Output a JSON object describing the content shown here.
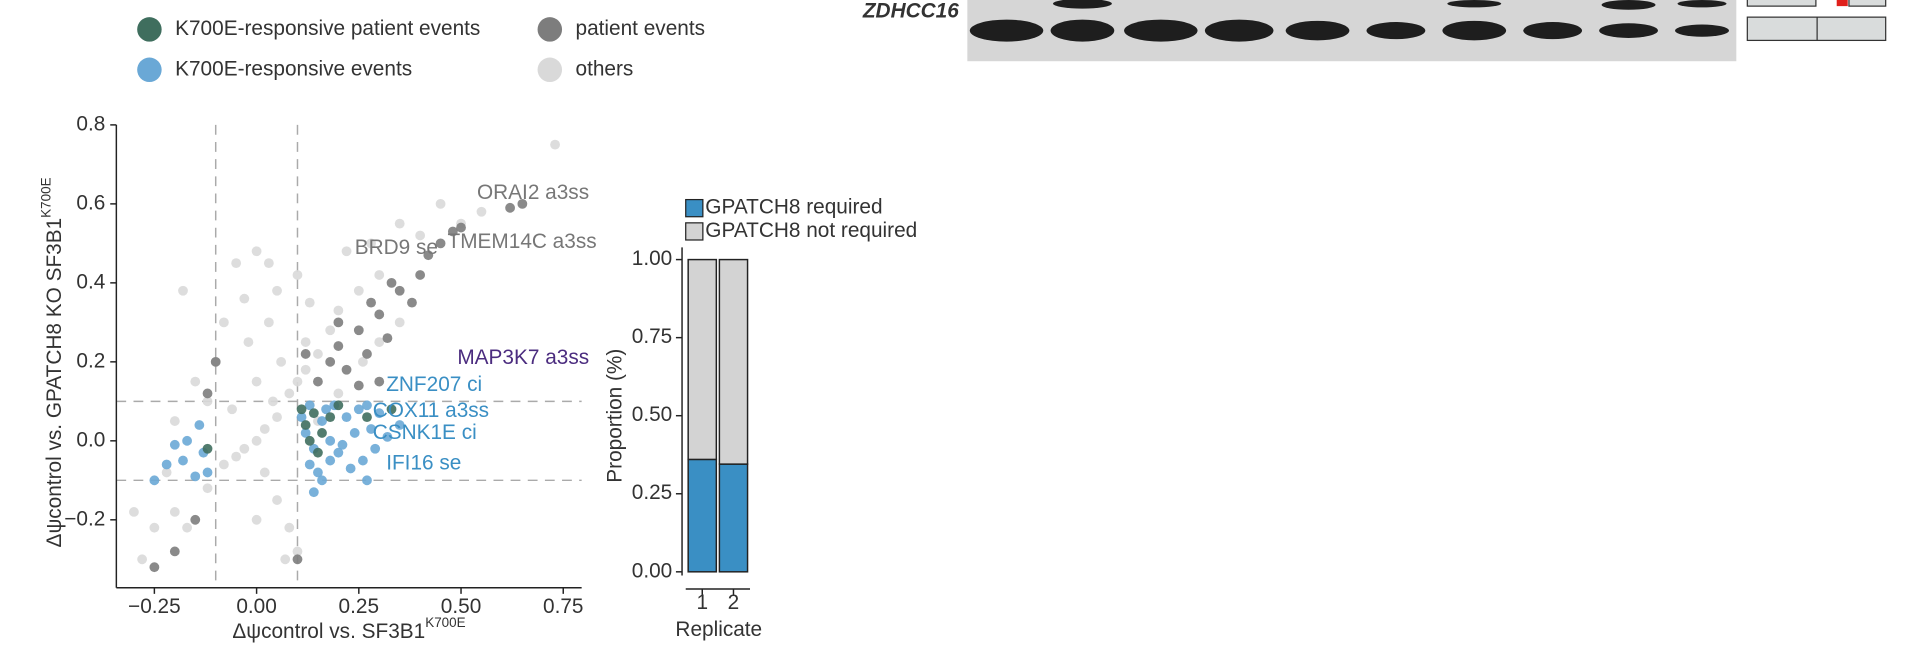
{
  "gel": {
    "label": "ZDHCC16"
  },
  "chart_data": [
    {
      "type": "scatter",
      "xlabel": "Δψcontrol vs. SF3B1",
      "xlabel_sup": "K700E",
      "ylabel": "Δψcontrol vs. GPATCH8 KO SF3B1",
      "ylabel_sup": "K700E",
      "xlim": [
        -0.343,
        0.795
      ],
      "ylim": [
        -0.372,
        0.8
      ],
      "xticks": [
        {
          "value": -0.25,
          "label": "−0.25"
        },
        {
          "value": 0,
          "label": "0.00"
        },
        {
          "value": 0.25,
          "label": "0.25"
        },
        {
          "value": 0.5,
          "label": "0.50"
        },
        {
          "value": 0.75,
          "label": "0.75"
        }
      ],
      "yticks": [
        {
          "value": -0.2,
          "label": "−0.2"
        },
        {
          "value": 0,
          "label": "0.0"
        },
        0.2,
        0.4,
        0.6,
        0.8
      ],
      "ref_lines": {
        "x": [
          -0.1,
          0.1
        ],
        "y": [
          -0.1,
          0.1
        ]
      },
      "series": [
        {
          "name": "K700E-responsive patient events",
          "color": "#3f6e5e",
          "x": [
            0.11,
            0.12,
            0.13,
            0.14,
            0.16,
            0.18,
            0.2,
            0.15,
            0.27,
            0.33,
            -0.12
          ],
          "y": [
            0.08,
            0.04,
            0.0,
            0.07,
            0.02,
            0.06,
            0.09,
            -0.03,
            0.06,
            0.08,
            -0.02
          ]
        },
        {
          "name": "patient events",
          "color": "#7d7d7d",
          "x": [
            0.15,
            0.18,
            0.2,
            0.22,
            0.25,
            0.27,
            0.3,
            0.32,
            0.35,
            0.38,
            0.4,
            0.42,
            0.45,
            0.48,
            0.5,
            0.62,
            0.65,
            0.28,
            0.2,
            0.12,
            -0.1,
            -0.12,
            -0.15,
            -0.2,
            -0.25,
            0.1,
            0.3,
            0.33,
            0.25
          ],
          "y": [
            0.15,
            0.2,
            0.24,
            0.18,
            0.28,
            0.22,
            0.32,
            0.26,
            0.38,
            0.35,
            0.42,
            0.47,
            0.5,
            0.53,
            0.54,
            0.59,
            0.6,
            0.35,
            0.3,
            0.22,
            0.2,
            0.12,
            -0.2,
            -0.28,
            -0.32,
            -0.3,
            0.15,
            0.4,
            0.14
          ]
        },
        {
          "name": "K700E-responsive events",
          "color": "#6aa8d6",
          "x": [
            0.12,
            0.14,
            0.16,
            0.18,
            0.2,
            0.22,
            0.24,
            0.26,
            0.28,
            0.3,
            0.32,
            0.13,
            0.15,
            0.17,
            0.19,
            0.21,
            0.23,
            0.25,
            0.11,
            0.13,
            0.16,
            0.14,
            0.18,
            0.35,
            0.29,
            0.27,
            -0.12,
            -0.13,
            -0.15,
            -0.18,
            -0.2,
            -0.22,
            -0.25,
            -0.14,
            -0.17,
            0.27
          ],
          "y": [
            0.02,
            -0.02,
            0.05,
            0.0,
            -0.03,
            0.06,
            0.02,
            -0.05,
            0.03,
            0.07,
            0.01,
            -0.06,
            -0.08,
            0.08,
            0.09,
            -0.01,
            -0.07,
            0.08,
            0.06,
            0.09,
            -0.1,
            -0.13,
            -0.05,
            0.04,
            -0.02,
            0.09,
            -0.08,
            -0.03,
            -0.09,
            -0.05,
            -0.01,
            -0.06,
            -0.1,
            0.04,
            0.0,
            -0.1
          ]
        },
        {
          "name": "others",
          "color": "#d9d9d9",
          "x": [
            0,
            0.02,
            -0.03,
            0.05,
            -0.05,
            0.04,
            0.08,
            -0.08,
            0.1,
            0.12,
            0.06,
            0.15,
            0,
            -0.02,
            0.03,
            -0.05,
            0,
            0.18,
            0.2,
            0.25,
            0.3,
            0.22,
            0.28,
            0.35,
            0.4,
            0.45,
            0.5,
            0.55,
            0.73,
            -0.1,
            -0.15,
            -0.18,
            -0.12,
            -0.2,
            -0.25,
            -0.28,
            -0.3,
            -0.22,
            -0.06,
            0.02,
            0.05,
            0.08,
            0.1,
            0.07,
            0,
            -0.03,
            0.1,
            0.13,
            -0.12,
            -0.2,
            0.15,
            0.2,
            0.3,
            0.35,
            0.05,
            -0.08,
            0.12,
            0.26,
            -0.17,
            0.03
          ],
          "y": [
            0,
            0.03,
            -0.02,
            0.06,
            -0.04,
            0.1,
            0.12,
            -0.06,
            0.15,
            0.18,
            0.2,
            0.22,
            0.15,
            0.25,
            0.3,
            0.45,
            0.48,
            0.28,
            0.33,
            0.38,
            0.42,
            0.48,
            0.5,
            0.55,
            0.52,
            0.6,
            0.55,
            0.58,
            0.75,
            0.2,
            0.15,
            0.38,
            -0.12,
            -0.18,
            -0.22,
            -0.3,
            -0.18,
            -0.08,
            0.08,
            -0.08,
            -0.15,
            -0.22,
            -0.28,
            -0.3,
            -0.2,
            0.36,
            0.42,
            0.35,
            0.1,
            0.05,
            0.05,
            0.12,
            0.25,
            0.3,
            0.38,
            0.3,
            0.25,
            0.2,
            -0.22,
            0.45
          ]
        }
      ],
      "annotations": [
        {
          "text": "ORAI2 a3ss",
          "x": 0.539,
          "y": 0.626,
          "color": "#777777"
        },
        {
          "text": "BRD9 se",
          "x": 0.24,
          "y": 0.487,
          "color": "#777777"
        },
        {
          "text": "TMEM14C a3ss",
          "x": 0.467,
          "y": 0.502,
          "color": "#777777"
        },
        {
          "text": "MAP3K7 a3ss",
          "x": 0.491,
          "y": 0.208,
          "color": "#4b2c7f"
        },
        {
          "text": "ZNF207 ci",
          "x": 0.317,
          "y": 0.14,
          "color": "#3a8fc4"
        },
        {
          "text": "COX11 a3ss",
          "x": 0.284,
          "y": 0.074,
          "color": "#3a8fc4"
        },
        {
          "text": "CSNK1E ci",
          "x": 0.284,
          "y": 0.019,
          "color": "#3a8fc4"
        },
        {
          "text": "IFI16 se",
          "x": 0.317,
          "y": -0.059,
          "color": "#3a8fc4"
        }
      ]
    },
    {
      "type": "stacked_bar",
      "xlabel": "Replicate",
      "ylabel": "Proportion (%)",
      "categories": [
        "1",
        "2"
      ],
      "ylim": [
        0,
        1
      ],
      "yticks": [
        {
          "value": 0,
          "label": "0.00"
        },
        {
          "value": 0.25,
          "label": "0.25"
        },
        {
          "value": 0.5,
          "label": "0.50"
        },
        {
          "value": 0.75,
          "label": "0.75"
        },
        {
          "value": 1,
          "label": "1.00"
        }
      ],
      "series": [
        {
          "name": "GPATCH8 required",
          "color": "#3a8fc4",
          "values": [
            0.36,
            0.345
          ]
        },
        {
          "name": "GPATCH8 not required",
          "color": "#d3d3d3",
          "values": [
            0.64,
            0.655
          ]
        }
      ]
    }
  ]
}
